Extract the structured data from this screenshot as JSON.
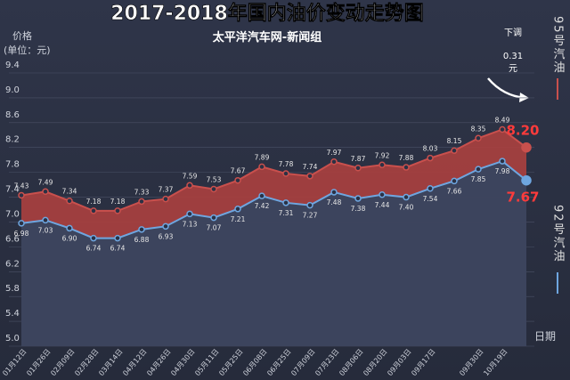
{
  "chart_data": {
    "type": "line",
    "title": "2017-2018年国内油价变动走势图",
    "subtitle": "太平洋汽车网-新闻组",
    "y_label": [
      "价格",
      "(单位：元)"
    ],
    "x_label": "日期",
    "annotation": [
      "下调",
      "0.31",
      "元"
    ],
    "categories": [
      "01月12日",
      "01月26日",
      "02月09日",
      "02月28日",
      "03月14日",
      "04月12日",
      "04月26日",
      "04月30日",
      "05月11日",
      "05月25日",
      "06月08日",
      "06月25日",
      "07月09日",
      "07月23日",
      "08月06日",
      "08月20日",
      "09月03日",
      "09月17日",
      null,
      "09月30日",
      "10月19日",
      null
    ],
    "series": [
      {
        "name": "95号汽油",
        "color": "#c9504d",
        "values": [
          7.43,
          7.49,
          7.34,
          7.18,
          7.18,
          7.33,
          7.37,
          7.59,
          7.53,
          7.67,
          7.89,
          7.78,
          7.74,
          7.97,
          7.87,
          7.92,
          7.88,
          8.03,
          8.15,
          8.35,
          8.49,
          8.2
        ],
        "value_labels": [
          "7.43",
          "7.49",
          "7.34",
          "7.18",
          "7.18",
          "7.33",
          "7.37",
          "7.59",
          "7.53",
          "7.67",
          "7.89",
          "7.78",
          "7.74",
          "7.97",
          "7.87",
          "7.92",
          "7.88",
          "8.03",
          "8.15",
          "8.35",
          "8.49",
          "8.20"
        ]
      },
      {
        "name": "92号汽油",
        "color": "#6ea6e0",
        "values": [
          6.98,
          7.03,
          6.9,
          6.74,
          6.74,
          6.88,
          6.93,
          7.13,
          7.07,
          7.21,
          7.42,
          7.31,
          7.27,
          7.48,
          7.38,
          7.44,
          7.4,
          7.54,
          7.66,
          7.85,
          7.98,
          7.67
        ],
        "value_labels": [
          "6.98",
          "7.03",
          "6.90",
          "6.74",
          "6.74",
          "6.88",
          "6.93",
          "7.13",
          "7.07",
          "7.21",
          "7.42",
          "7.31",
          "7.27",
          "7.48",
          "7.38",
          "7.44",
          "7.40",
          "7.54",
          "7.66",
          "7.85",
          "7.98",
          "7.67"
        ]
      }
    ],
    "ylim": [
      5,
      9.4
    ],
    "yticks": [
      {
        "value": 5,
        "label": "5.0"
      },
      5.4,
      5.8,
      6.2,
      6.6,
      {
        "value": 7,
        "label": "7.0"
      },
      7.4,
      7.8,
      8.2,
      8.6,
      {
        "value": 9,
        "label": "9.0"
      },
      9.4
    ],
    "grid": true
  }
}
